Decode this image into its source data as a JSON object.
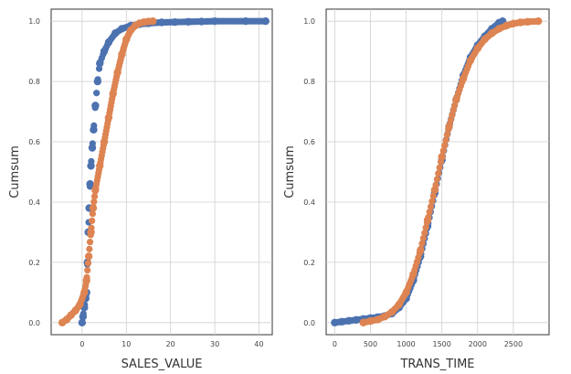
{
  "chart_data": [
    {
      "type": "scatter",
      "title": "",
      "xlabel": "SALES_VALUE",
      "ylabel": "Cumsum",
      "xlim": [
        -7,
        43
      ],
      "ylim": [
        -0.04,
        1.04
      ],
      "xticks": [
        0,
        10,
        20,
        30,
        40
      ],
      "yticks": [
        0.0,
        0.2,
        0.4,
        0.6,
        0.8,
        1.0
      ],
      "xtick_labels": [
        "0",
        "10",
        "20",
        "30",
        "40"
      ],
      "ytick_labels": [
        "0.0",
        "0.2",
        "0.4",
        "0.6",
        "0.8",
        "1.0"
      ],
      "grid": true,
      "series": [
        {
          "color": "#4C72B0",
          "points": [
            [
              0,
              0.0
            ],
            [
              0.2,
              0.02
            ],
            [
              0.5,
              0.05
            ],
            [
              0.8,
              0.08
            ],
            [
              1.0,
              0.1
            ],
            [
              1.2,
              0.2
            ],
            [
              1.4,
              0.3
            ],
            [
              1.6,
              0.38
            ],
            [
              1.8,
              0.46
            ],
            [
              2.0,
              0.52
            ],
            [
              2.3,
              0.58
            ],
            [
              2.6,
              0.64
            ],
            [
              3.0,
              0.72
            ],
            [
              3.5,
              0.8
            ],
            [
              4.0,
              0.86
            ],
            [
              5.0,
              0.9
            ],
            [
              6.0,
              0.93
            ],
            [
              7.5,
              0.96
            ],
            [
              9.0,
              0.975
            ],
            [
              11,
              0.985
            ],
            [
              13,
              0.99
            ],
            [
              15,
              0.993
            ],
            [
              18,
              0.996
            ],
            [
              21,
              0.997
            ],
            [
              24,
              0.998
            ],
            [
              27,
              0.999
            ],
            [
              30,
              1.0
            ],
            [
              37,
              1.0
            ],
            [
              41.5,
              1.0
            ]
          ]
        },
        {
          "color": "#DD8452",
          "points": [
            [
              -4.5,
              0.0
            ],
            [
              -3.5,
              0.01
            ],
            [
              -2.5,
              0.025
            ],
            [
              -1.5,
              0.04
            ],
            [
              -0.5,
              0.06
            ],
            [
              0.5,
              0.1
            ],
            [
              1.0,
              0.14
            ],
            [
              1.5,
              0.22
            ],
            [
              2.0,
              0.3
            ],
            [
              2.5,
              0.38
            ],
            [
              3.0,
              0.44
            ],
            [
              4.0,
              0.52
            ],
            [
              5.0,
              0.6
            ],
            [
              6.0,
              0.68
            ],
            [
              7.0,
              0.76
            ],
            [
              8.0,
              0.83
            ],
            [
              9.0,
              0.89
            ],
            [
              10.0,
              0.94
            ],
            [
              11.0,
              0.97
            ],
            [
              12.0,
              0.985
            ],
            [
              13.0,
              0.993
            ],
            [
              14.0,
              0.997
            ],
            [
              15.0,
              0.999
            ],
            [
              16.0,
              1.0
            ]
          ]
        }
      ]
    },
    {
      "type": "scatter",
      "title": "",
      "xlabel": "TRANS_TIME",
      "ylabel": "Cumsum",
      "xlim": [
        -120,
        3000
      ],
      "ylim": [
        -0.04,
        1.04
      ],
      "xticks": [
        0,
        500,
        1000,
        1500,
        2000,
        2500
      ],
      "yticks": [
        0.0,
        0.2,
        0.4,
        0.6,
        0.8,
        1.0
      ],
      "xtick_labels": [
        "0",
        "500",
        "1000",
        "1500",
        "2000",
        "2500"
      ],
      "ytick_labels": [
        "0.0",
        "0.2",
        "0.4",
        "0.6",
        "0.8",
        "1.0"
      ],
      "grid": true,
      "series": [
        {
          "color": "#4C72B0",
          "points": [
            [
              0,
              0.0
            ],
            [
              100,
              0.003
            ],
            [
              200,
              0.006
            ],
            [
              300,
              0.009
            ],
            [
              400,
              0.012
            ],
            [
              500,
              0.015
            ],
            [
              600,
              0.018
            ],
            [
              700,
              0.022
            ],
            [
              800,
              0.03
            ],
            [
              900,
              0.05
            ],
            [
              1000,
              0.08
            ],
            [
              1100,
              0.14
            ],
            [
              1200,
              0.22
            ],
            [
              1300,
              0.32
            ],
            [
              1400,
              0.43
            ],
            [
              1500,
              0.54
            ],
            [
              1600,
              0.65
            ],
            [
              1700,
              0.74
            ],
            [
              1800,
              0.82
            ],
            [
              1900,
              0.88
            ],
            [
              2000,
              0.92
            ],
            [
              2100,
              0.95
            ],
            [
              2200,
              0.975
            ],
            [
              2300,
              0.995
            ],
            [
              2350,
              1.0
            ]
          ]
        },
        {
          "color": "#DD8452",
          "points": [
            [
              400,
              0.0
            ],
            [
              500,
              0.005
            ],
            [
              600,
              0.01
            ],
            [
              700,
              0.02
            ],
            [
              800,
              0.035
            ],
            [
              900,
              0.06
            ],
            [
              1000,
              0.1
            ],
            [
              1100,
              0.16
            ],
            [
              1200,
              0.24
            ],
            [
              1300,
              0.34
            ],
            [
              1400,
              0.44
            ],
            [
              1500,
              0.55
            ],
            [
              1600,
              0.65
            ],
            [
              1700,
              0.74
            ],
            [
              1800,
              0.81
            ],
            [
              1900,
              0.87
            ],
            [
              2000,
              0.91
            ],
            [
              2100,
              0.94
            ],
            [
              2200,
              0.96
            ],
            [
              2300,
              0.975
            ],
            [
              2400,
              0.985
            ],
            [
              2500,
              0.992
            ],
            [
              2600,
              0.996
            ],
            [
              2700,
              0.998
            ],
            [
              2850,
              1.0
            ]
          ]
        }
      ]
    }
  ]
}
